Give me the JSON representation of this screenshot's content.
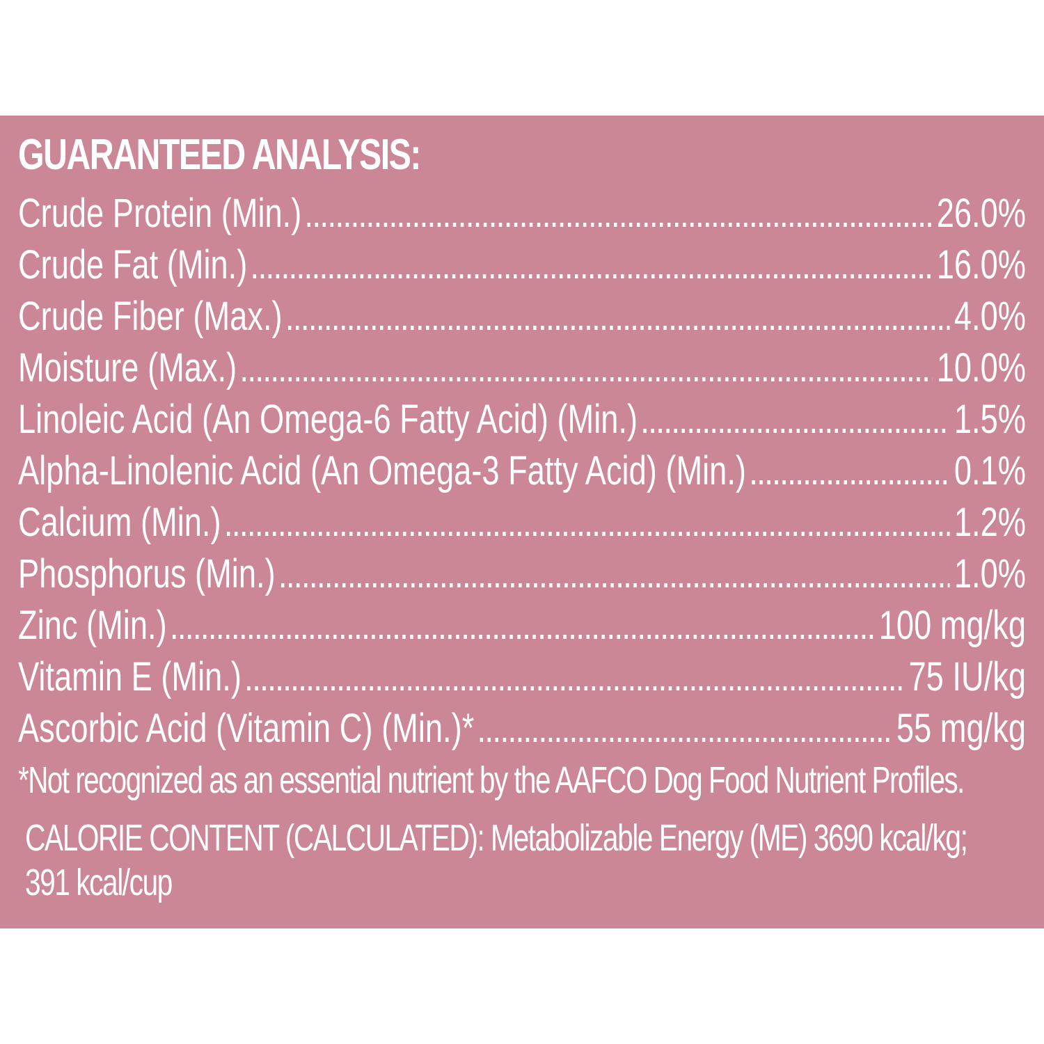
{
  "heading": "GUARANTEED ANALYSIS:",
  "rows": [
    {
      "label": "Crude Protein (Min.)",
      "value": "26.0%"
    },
    {
      "label": "Crude Fat (Min.)",
      "value": "16.0%"
    },
    {
      "label": "Crude Fiber (Max.)",
      "value": "4.0%"
    },
    {
      "label": "Moisture (Max.)",
      "value": "10.0%"
    },
    {
      "label": "Linoleic Acid (An Omega-6 Fatty Acid) (Min.)",
      "value": "1.5%"
    },
    {
      "label": "Alpha-Linolenic Acid (An Omega-3 Fatty Acid) (Min.)",
      "value": "0.1%"
    },
    {
      "label": "Calcium (Min.)",
      "value": "1.2%"
    },
    {
      "label": "Phosphorus (Min.)",
      "value": "1.0%"
    },
    {
      "label": "Zinc (Min.)",
      "value": "100 mg/kg"
    },
    {
      "label": "Vitamin E (Min.)",
      "value": "75 IU/kg"
    },
    {
      "label": "Ascorbic Acid (Vitamin C) (Min.)*",
      "value": "55 mg/kg"
    }
  ],
  "footnote": "*Not recognized as an essential nutrient by the AAFCO Dog Food Nutrient Profiles.",
  "calorie": "CALORIE CONTENT (CALCULATED): Metabolizable Energy (ME) 3690 kcal/kg; 391 kcal/cup",
  "colors": {
    "panel_background": "#cc8796",
    "text": "#ffffff",
    "page_background": "#ffffff"
  }
}
